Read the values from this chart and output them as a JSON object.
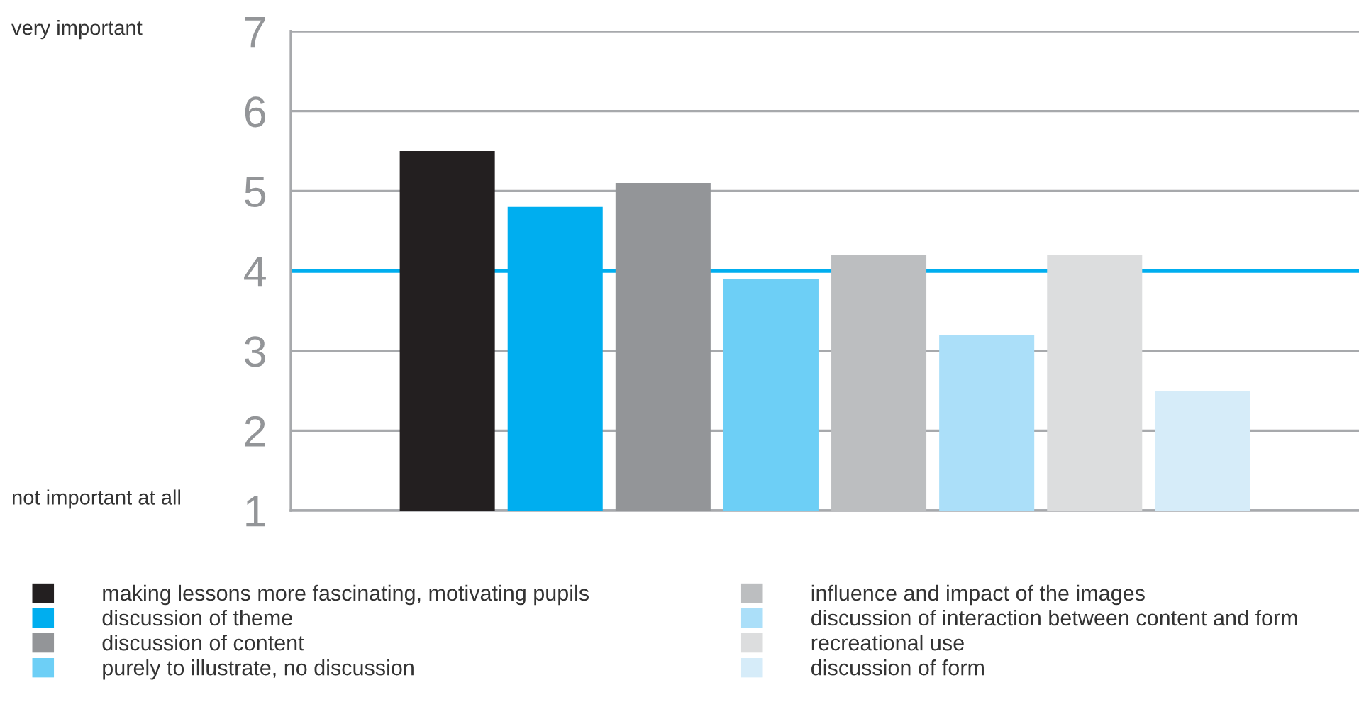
{
  "chart_data": {
    "type": "bar",
    "categories": [
      null
    ],
    "series": [
      {
        "name": "making lessons more fascinating, motivating pupils",
        "color": "#231f20",
        "values": [
          5.5
        ]
      },
      {
        "name": "discussion of theme",
        "color": "#00aeef",
        "values": [
          4.8
        ]
      },
      {
        "name": "discussion of content",
        "color": "#939598",
        "values": [
          5.1
        ]
      },
      {
        "name": "purely to illustrate, no discussion",
        "color": "#6dcff6",
        "values": [
          3.9
        ]
      },
      {
        "name": "influence and impact of the images",
        "color": "#bcbec0",
        "values": [
          4.2
        ]
      },
      {
        "name": "discussion of interaction between content and form",
        "color": "#abdff9",
        "values": [
          3.2
        ]
      },
      {
        "name": "recreational use",
        "color": "#dcddde",
        "values": [
          4.2
        ]
      },
      {
        "name": "discussion of form",
        "color": "#d6ecf9",
        "values": [
          2.5
        ]
      }
    ],
    "ylim": [
      1,
      7
    ],
    "yticks": [
      1,
      2,
      3,
      4,
      5,
      6,
      7
    ],
    "grid": "y",
    "legend": "bottom",
    "ref_lines": [
      {
        "axis": "y",
        "value": 4,
        "color": "#00aeef"
      }
    ],
    "annotations": [
      "very important",
      "not important at all"
    ]
  }
}
